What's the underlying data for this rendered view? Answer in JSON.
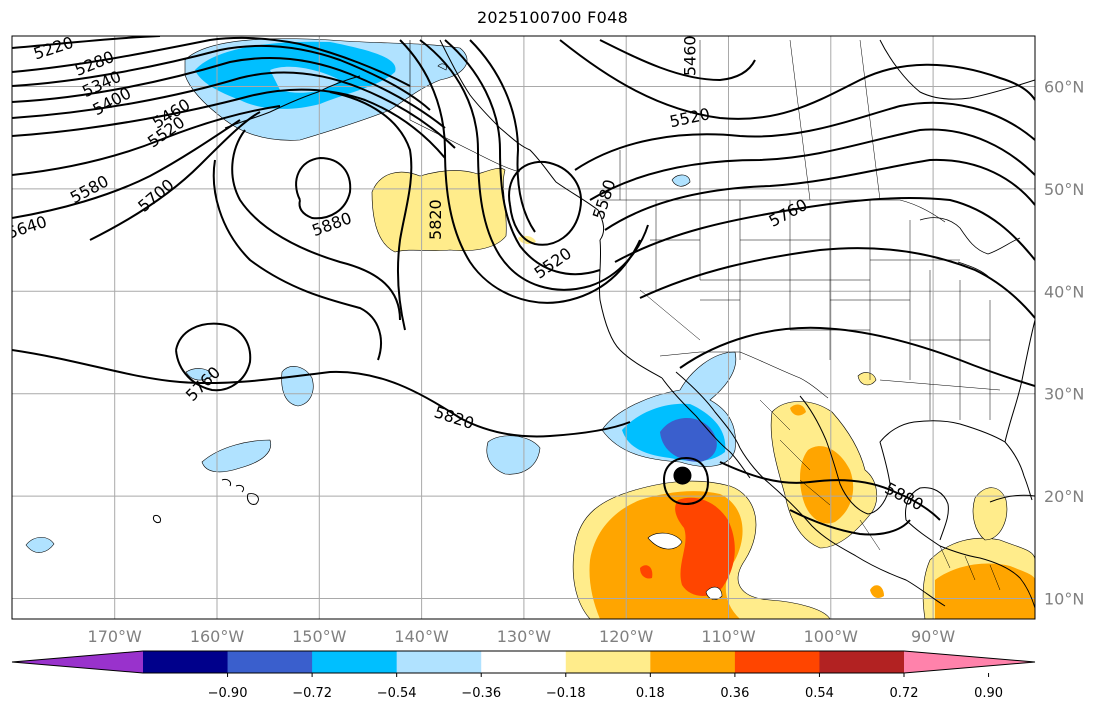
{
  "title": "2025100700 F048",
  "colors": {
    "grid": "#a9a9a9",
    "contour": "#000000",
    "coast": "#000000",
    "axis_label": "#808080",
    "levels": [
      "#9932cc",
      "#00008b",
      "#3a5fcd",
      "#00bfff",
      "#b0e2ff",
      "#ffffff",
      "#ffec8b",
      "#ffa500",
      "#ff4500",
      "#b22222",
      "#ff82ab"
    ]
  },
  "map": {
    "latitudes": [
      {
        "value": 60,
        "label": "60°N"
      },
      {
        "value": 50,
        "label": "50°N"
      },
      {
        "value": 40,
        "label": "40°N"
      },
      {
        "value": 30,
        "label": "30°N"
      },
      {
        "value": 20,
        "label": "20°N"
      },
      {
        "value": 10,
        "label": "10°N"
      }
    ],
    "longitudes": [
      {
        "value": -170,
        "label": "170°W"
      },
      {
        "value": -160,
        "label": "160°W"
      },
      {
        "value": -150,
        "label": "150°W"
      },
      {
        "value": -140,
        "label": "140°W"
      },
      {
        "value": -130,
        "label": "130°W"
      },
      {
        "value": -120,
        "label": "120°W"
      },
      {
        "value": -110,
        "label": "110°W"
      },
      {
        "value": -100,
        "label": "100°W"
      },
      {
        "value": -90,
        "label": "90°W"
      }
    ],
    "contour_labels": [
      {
        "text": "5220",
        "lon": -176.0,
        "lat": 63.8,
        "rot": -18
      },
      {
        "text": "5280",
        "lon": -172.0,
        "lat": 62.3,
        "rot": -22
      },
      {
        "text": "5340",
        "lon": -171.3,
        "lat": 60.3,
        "rot": -25
      },
      {
        "text": "5400",
        "lon": -170.3,
        "lat": 58.6,
        "rot": -28
      },
      {
        "text": "5460",
        "lon": -164.5,
        "lat": 57.4,
        "rot": -32
      },
      {
        "text": "5520",
        "lon": -165.0,
        "lat": 55.6,
        "rot": -35
      },
      {
        "text": "5580",
        "lon": -172.5,
        "lat": 50.0,
        "rot": -28
      },
      {
        "text": "5640",
        "lon": -178.6,
        "lat": 46.3,
        "rot": -18
      },
      {
        "text": "5700",
        "lon": -166.0,
        "lat": 49.4,
        "rot": -40
      },
      {
        "text": "5880",
        "lon": -148.8,
        "lat": 46.6,
        "rot": -20
      },
      {
        "text": "5820",
        "lon": -138.7,
        "lat": 47.0,
        "rot": -90
      },
      {
        "text": "5520",
        "lon": -127.2,
        "lat": 42.8,
        "rot": -35
      },
      {
        "text": "5580",
        "lon": -122.2,
        "lat": 49.0,
        "rot": -72
      },
      {
        "text": "5460",
        "lon": -113.8,
        "lat": 63.0,
        "rot": -90
      },
      {
        "text": "5520",
        "lon": -113.8,
        "lat": 57.0,
        "rot": -12
      },
      {
        "text": "5760",
        "lon": -104.2,
        "lat": 47.7,
        "rot": -28
      },
      {
        "text": "5760",
        "lon": -161.4,
        "lat": 31.0,
        "rot": -45
      },
      {
        "text": "5820",
        "lon": -136.8,
        "lat": 27.7,
        "rot": 18
      },
      {
        "text": "5880",
        "lon": -92.8,
        "lat": 20.0,
        "rot": 28
      }
    ],
    "storm_marker": {
      "lon": -114.5,
      "lat": 22.0
    }
  },
  "colorbar": {
    "ticks": [
      "−0.90",
      "−0.72",
      "−0.54",
      "−0.36",
      "−0.18",
      "0.18",
      "0.36",
      "0.54",
      "0.72",
      "0.90"
    ]
  }
}
